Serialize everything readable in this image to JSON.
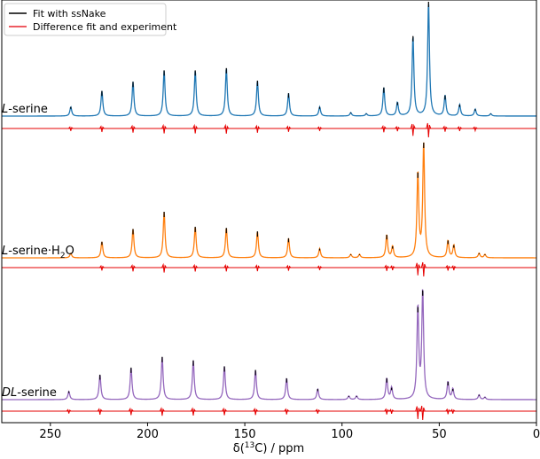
{
  "chart_data": {
    "type": "line",
    "title": "",
    "xlabel": "δ(¹³C) / ppm",
    "xlabel_parts": {
      "prefix": "δ(",
      "sup": "13",
      "suffix": "C) / ppm"
    },
    "xlim": [
      275,
      0
    ],
    "x_ticks": [
      250,
      200,
      150,
      100,
      50,
      0
    ],
    "legend": {
      "placement": "top-left",
      "entries": [
        {
          "label": "Fit with ssNake",
          "color": "#000000"
        },
        {
          "label": "Difference fit and experiment",
          "color": "#e8252f"
        }
      ]
    },
    "series": [
      {
        "name": "L-serine",
        "label_italic": "L",
        "label_rest": "-serine",
        "color": "#1f77b4",
        "fit_color": "#000000",
        "diff_color": "#e60000",
        "peaks": [
          {
            "ppm": 239.5,
            "height": 0.08
          },
          {
            "ppm": 223.5,
            "height": 0.22
          },
          {
            "ppm": 207.5,
            "height": 0.3
          },
          {
            "ppm": 191.5,
            "height": 0.4
          },
          {
            "ppm": 175.5,
            "height": 0.4
          },
          {
            "ppm": 159.5,
            "height": 0.42
          },
          {
            "ppm": 143.5,
            "height": 0.31
          },
          {
            "ppm": 127.5,
            "height": 0.2
          },
          {
            "ppm": 111.5,
            "height": 0.08
          },
          {
            "ppm": 95.5,
            "height": 0.03
          },
          {
            "ppm": 87.5,
            "height": 0.02
          },
          {
            "ppm": 78.5,
            "height": 0.25
          },
          {
            "ppm": 71.5,
            "height": 0.12
          },
          {
            "ppm": 63.5,
            "height": 0.7
          },
          {
            "ppm": 55.5,
            "height": 1.0
          },
          {
            "ppm": 47.0,
            "height": 0.18
          },
          {
            "ppm": 39.5,
            "height": 0.1
          },
          {
            "ppm": 31.5,
            "height": 0.06
          },
          {
            "ppm": 23.5,
            "height": 0.02
          }
        ]
      },
      {
        "name": "L-serine·H2O",
        "label_italic": "L",
        "label_rest": "-serine·H",
        "label_sub": "2",
        "label_tail": "O",
        "color": "#ff7f0e",
        "fit_color": "#000000",
        "diff_color": "#e60000",
        "peaks": [
          {
            "ppm": 239.5,
            "height": 0.04
          },
          {
            "ppm": 223.5,
            "height": 0.14
          },
          {
            "ppm": 207.5,
            "height": 0.25
          },
          {
            "ppm": 191.5,
            "height": 0.4
          },
          {
            "ppm": 175.5,
            "height": 0.27
          },
          {
            "ppm": 159.5,
            "height": 0.26
          },
          {
            "ppm": 143.5,
            "height": 0.23
          },
          {
            "ppm": 127.5,
            "height": 0.17
          },
          {
            "ppm": 111.5,
            "height": 0.08
          },
          {
            "ppm": 95.5,
            "height": 0.03
          },
          {
            "ppm": 91.0,
            "height": 0.03
          },
          {
            "ppm": 77.0,
            "height": 0.2
          },
          {
            "ppm": 74.0,
            "height": 0.1
          },
          {
            "ppm": 61.0,
            "height": 0.74
          },
          {
            "ppm": 58.0,
            "height": 1.0
          },
          {
            "ppm": 45.5,
            "height": 0.15
          },
          {
            "ppm": 42.5,
            "height": 0.11
          },
          {
            "ppm": 29.5,
            "height": 0.04
          },
          {
            "ppm": 26.5,
            "height": 0.03
          }
        ]
      },
      {
        "name": "DL-serine",
        "label_italic": "DL",
        "label_rest": "-serine",
        "color": "#9467bd",
        "fit_color": "#000000",
        "diff_color": "#e60000",
        "peaks": [
          {
            "ppm": 240.5,
            "height": 0.07
          },
          {
            "ppm": 224.5,
            "height": 0.21
          },
          {
            "ppm": 208.5,
            "height": 0.27
          },
          {
            "ppm": 192.5,
            "height": 0.36
          },
          {
            "ppm": 176.5,
            "height": 0.33
          },
          {
            "ppm": 160.5,
            "height": 0.28
          },
          {
            "ppm": 144.5,
            "height": 0.25
          },
          {
            "ppm": 128.5,
            "height": 0.18
          },
          {
            "ppm": 112.5,
            "height": 0.09
          },
          {
            "ppm": 96.5,
            "height": 0.03
          },
          {
            "ppm": 92.5,
            "height": 0.03
          },
          {
            "ppm": 77.0,
            "height": 0.18
          },
          {
            "ppm": 74.5,
            "height": 0.1
          },
          {
            "ppm": 61.0,
            "height": 0.78
          },
          {
            "ppm": 58.5,
            "height": 0.92
          },
          {
            "ppm": 45.5,
            "height": 0.15
          },
          {
            "ppm": 43.0,
            "height": 0.09
          },
          {
            "ppm": 29.5,
            "height": 0.04
          },
          {
            "ppm": 26.5,
            "height": 0.02
          }
        ]
      }
    ]
  }
}
